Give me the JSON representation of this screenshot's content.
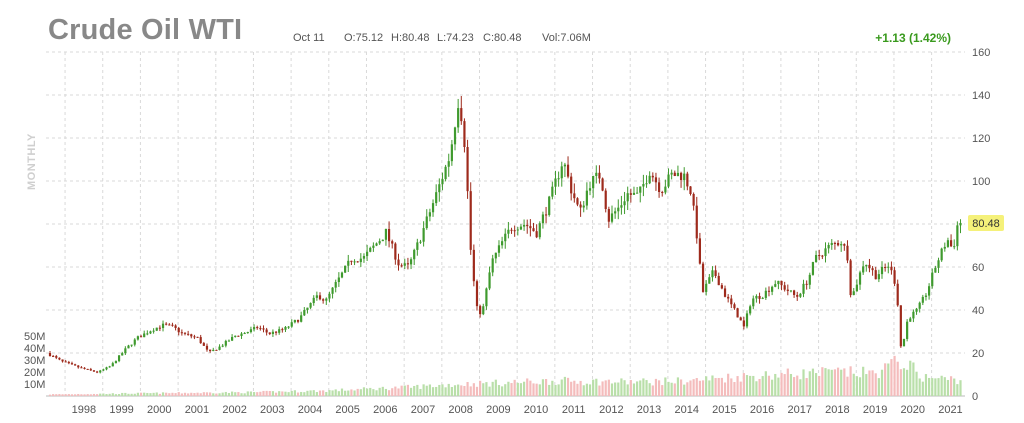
{
  "header": {
    "title": "Crude Oil WTI",
    "date": "Oct 11",
    "open": "O:75.12",
    "high": "H:80.48",
    "low": "L:74.23",
    "close": "C:80.48",
    "volume": "Vol:7.06M",
    "change": "+1.13 (1.42%)",
    "period": "MONTHLY"
  },
  "colors": {
    "up": "#3f9a2e",
    "down": "#9e2a1c",
    "vol_up": "#b9dfa9",
    "vol_down": "#f4bcbc",
    "last_price_bg": "#f5f17a",
    "grid": "#d9d9d9"
  },
  "chart_data": {
    "type": "candlestick",
    "interval": "monthly",
    "x_tick_labels": [
      "1998",
      "1999",
      "2000",
      "2001",
      "2002",
      "2003",
      "2004",
      "2005",
      "2006",
      "2007",
      "2008",
      "2009",
      "2010",
      "2011",
      "2012",
      "2013",
      "2014",
      "2015",
      "2016",
      "2017",
      "2018",
      "2019",
      "2020",
      "2021"
    ],
    "y_tick_labels": [
      "0",
      "20",
      "40",
      "60",
      "80",
      "100",
      "120",
      "140",
      "160"
    ],
    "ylim": [
      0,
      160
    ],
    "volume_tick_labels": [
      "10M",
      "20M",
      "30M",
      "40M",
      "50M"
    ],
    "volume_lim": [
      0,
      55
    ],
    "last_price": 80.48,
    "last_price_label": "80.48",
    "price_anchors": [
      [
        1997.6,
        20
      ],
      [
        1998.0,
        16
      ],
      [
        1998.5,
        13
      ],
      [
        1998.95,
        11
      ],
      [
        1999.3,
        14
      ],
      [
        1999.7,
        22
      ],
      [
        2000.0,
        27
      ],
      [
        2000.4,
        31
      ],
      [
        2000.7,
        33
      ],
      [
        2000.95,
        32
      ],
      [
        2001.2,
        29
      ],
      [
        2001.6,
        27
      ],
      [
        2001.9,
        20
      ],
      [
        2002.2,
        23
      ],
      [
        2002.6,
        28
      ],
      [
        2002.95,
        30
      ],
      [
        2003.2,
        32
      ],
      [
        2003.5,
        29
      ],
      [
        2003.9,
        31
      ],
      [
        2004.3,
        36
      ],
      [
        2004.8,
        47
      ],
      [
        2005.0,
        44
      ],
      [
        2005.3,
        53
      ],
      [
        2005.7,
        64
      ],
      [
        2006.0,
        64
      ],
      [
        2006.6,
        76
      ],
      [
        2006.95,
        61
      ],
      [
        2007.2,
        60
      ],
      [
        2007.5,
        73
      ],
      [
        2007.9,
        92
      ],
      [
        2008.3,
        112
      ],
      [
        2008.54,
        140
      ],
      [
        2008.7,
        116
      ],
      [
        2008.85,
        68
      ],
      [
        2009.0,
        41
      ],
      [
        2009.15,
        38
      ],
      [
        2009.4,
        62
      ],
      [
        2009.7,
        72
      ],
      [
        2009.95,
        79
      ],
      [
        2010.3,
        80
      ],
      [
        2010.6,
        76
      ],
      [
        2010.95,
        91
      ],
      [
        2011.3,
        110
      ],
      [
        2011.5,
        97
      ],
      [
        2011.75,
        85
      ],
      [
        2012.0,
        99
      ],
      [
        2012.3,
        103
      ],
      [
        2012.5,
        82
      ],
      [
        2012.8,
        88
      ],
      [
        2013.0,
        94
      ],
      [
        2013.3,
        93
      ],
      [
        2013.6,
        105
      ],
      [
        2013.9,
        96
      ],
      [
        2014.2,
        103
      ],
      [
        2014.5,
        103
      ],
      [
        2014.7,
        95
      ],
      [
        2014.85,
        75
      ],
      [
        2015.0,
        48
      ],
      [
        2015.3,
        58
      ],
      [
        2015.6,
        47
      ],
      [
        2015.95,
        37
      ],
      [
        2016.1,
        32
      ],
      [
        2016.3,
        45
      ],
      [
        2016.6,
        47
      ],
      [
        2016.95,
        53
      ],
      [
        2017.2,
        50
      ],
      [
        2017.5,
        46
      ],
      [
        2017.8,
        54
      ],
      [
        2018.0,
        64
      ],
      [
        2018.4,
        70
      ],
      [
        2018.7,
        72
      ],
      [
        2018.85,
        65
      ],
      [
        2018.95,
        45
      ],
      [
        2019.3,
        63
      ],
      [
        2019.6,
        56
      ],
      [
        2019.95,
        61
      ],
      [
        2020.15,
        51
      ],
      [
        2020.28,
        20
      ],
      [
        2020.45,
        36
      ],
      [
        2020.7,
        40
      ],
      [
        2020.95,
        48
      ],
      [
        2021.2,
        61
      ],
      [
        2021.5,
        73
      ],
      [
        2021.65,
        68
      ],
      [
        2021.78,
        80.48
      ]
    ],
    "volume_anchors": [
      [
        1997.6,
        1.5
      ],
      [
        2000.0,
        2.5
      ],
      [
        2003.0,
        3.5
      ],
      [
        2005.0,
        5
      ],
      [
        2007.0,
        8
      ],
      [
        2008.5,
        11
      ],
      [
        2009.5,
        12
      ],
      [
        2011.0,
        14
      ],
      [
        2013.0,
        13
      ],
      [
        2014.5,
        14
      ],
      [
        2015.5,
        17
      ],
      [
        2017.0,
        20
      ],
      [
        2018.5,
        22
      ],
      [
        2019.5,
        21
      ],
      [
        2020.2,
        33
      ],
      [
        2020.8,
        17
      ],
      [
        2021.78,
        15
      ]
    ]
  }
}
